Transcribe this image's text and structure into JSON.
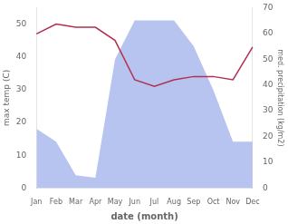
{
  "chart_data": {
    "type": "line",
    "categories": [
      "Jan",
      "Feb",
      "Mar",
      "Apr",
      "May",
      "Jun",
      "Jul",
      "Aug",
      "Sep",
      "Oct",
      "Nov",
      "Dec"
    ],
    "series": [
      {
        "type": "area",
        "color": "#b8c4f0",
        "axis": "y2",
        "values": [
          23,
          18,
          5,
          4,
          50,
          65,
          65,
          65,
          55,
          38,
          18,
          18
        ]
      },
      {
        "type": "line",
        "color": "#b03050",
        "values": [
          47,
          50,
          49,
          49,
          45,
          33,
          31,
          33,
          34,
          34,
          33,
          43
        ]
      }
    ],
    "xlabel": "date (month)",
    "ylabel": "max temp (C)",
    "y2label": "med. precipitation (kg/m2)",
    "ylim": [
      0,
      55
    ],
    "yticks": [
      0,
      10,
      20,
      30,
      40,
      50
    ],
    "y2lim": [
      0,
      70
    ],
    "y2ticks": [
      0,
      10,
      20,
      30,
      40,
      50,
      60,
      70
    ],
    "grid": false
  }
}
